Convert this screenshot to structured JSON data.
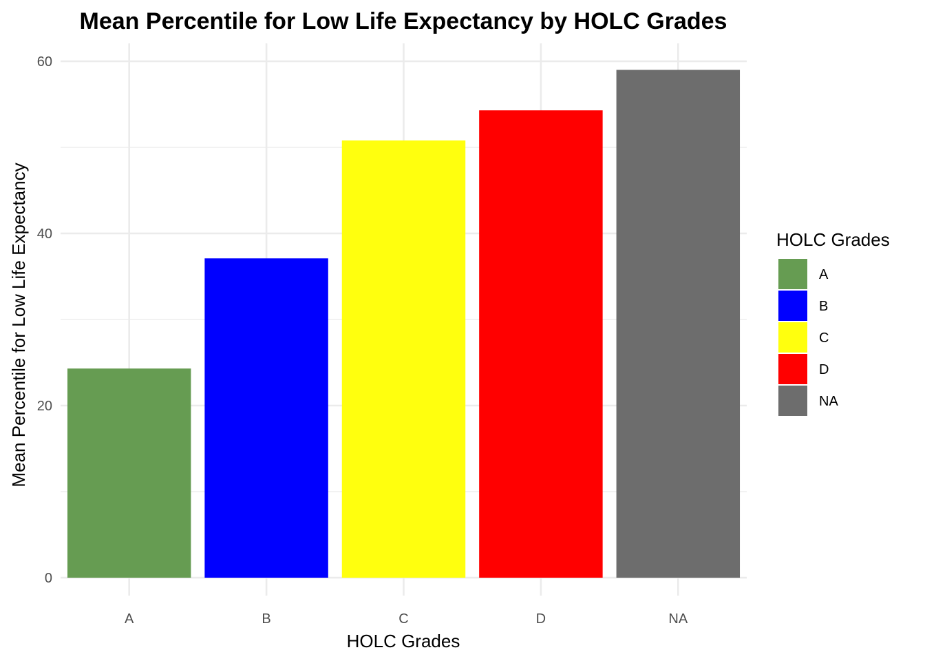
{
  "chart_data": {
    "type": "bar",
    "title": "Mean Percentile for Low Life Expectancy by HOLC Grades",
    "xlabel": "HOLC Grades",
    "ylabel": "Mean Percentile for Low Life Expectancy",
    "categories": [
      "A",
      "B",
      "C",
      "D",
      "NA"
    ],
    "values": [
      24.3,
      37.1,
      50.8,
      54.3,
      59.0
    ],
    "colors": [
      "#669c52",
      "#0000ff",
      "#ffff0e",
      "#ff0000",
      "#6d6d6d"
    ],
    "ylim": [
      0,
      62
    ],
    "yticks": [
      0,
      20,
      40,
      60
    ],
    "grid": true,
    "legend": {
      "title": "HOLC Grades",
      "position": "right",
      "entries": [
        "A",
        "B",
        "C",
        "D",
        "NA"
      ]
    }
  }
}
